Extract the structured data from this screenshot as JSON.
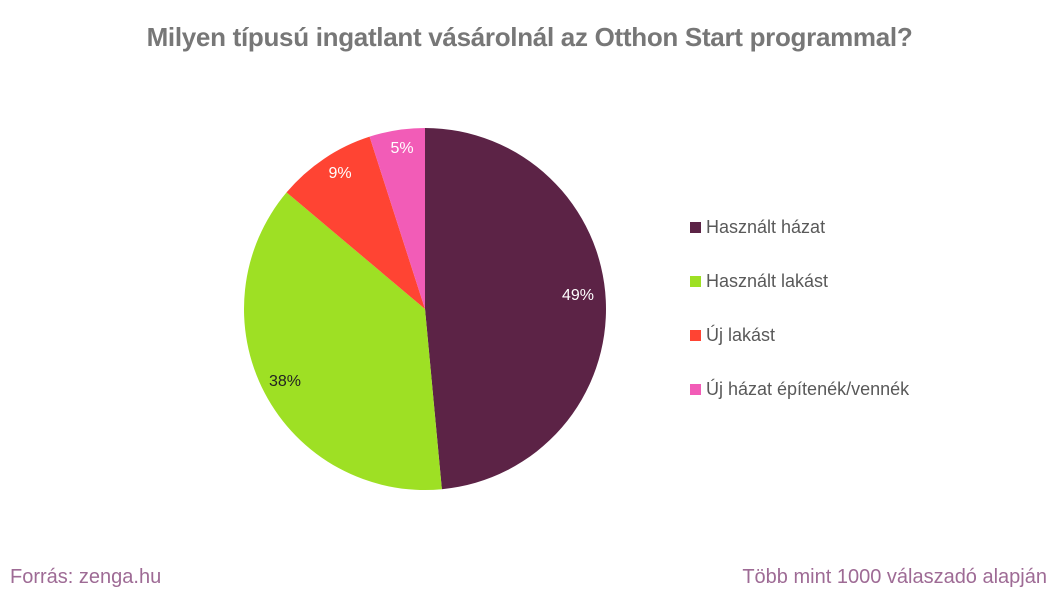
{
  "chart_data": {
    "type": "pie",
    "title": "Milyen típusú ingatlant vásárolnál az Otthon Start programmal?",
    "categories": [
      "Használt házat",
      "Használt lakást",
      "Új lakást",
      "Új házat építenék/vennék"
    ],
    "values": [
      49,
      38,
      9,
      5
    ],
    "unit": "%",
    "colors": [
      "#5c2346",
      "#9ee024",
      "#ff4433",
      "#f25cb7"
    ],
    "data_labels": [
      "49%",
      "38%",
      "9%",
      "5%"
    ],
    "legend_position": "right"
  },
  "title": "Milyen típusú ingatlant vásárolnál az Otthon Start programmal?",
  "legend": {
    "items": [
      {
        "label": "Használt házat",
        "color": "#5c2346"
      },
      {
        "label": "Használt lakást",
        "color": "#9ee024"
      },
      {
        "label": "Új lakást",
        "color": "#ff4433"
      },
      {
        "label": "Új házat építenék/vennék",
        "color": "#f25cb7"
      }
    ]
  },
  "labels": {
    "s0": "49%",
    "s1": "38%",
    "s2": "9%",
    "s3": "5%"
  },
  "footer": {
    "source": "Forrás: zenga.hu",
    "note": "Több mint 1000 válaszadó alapján"
  }
}
